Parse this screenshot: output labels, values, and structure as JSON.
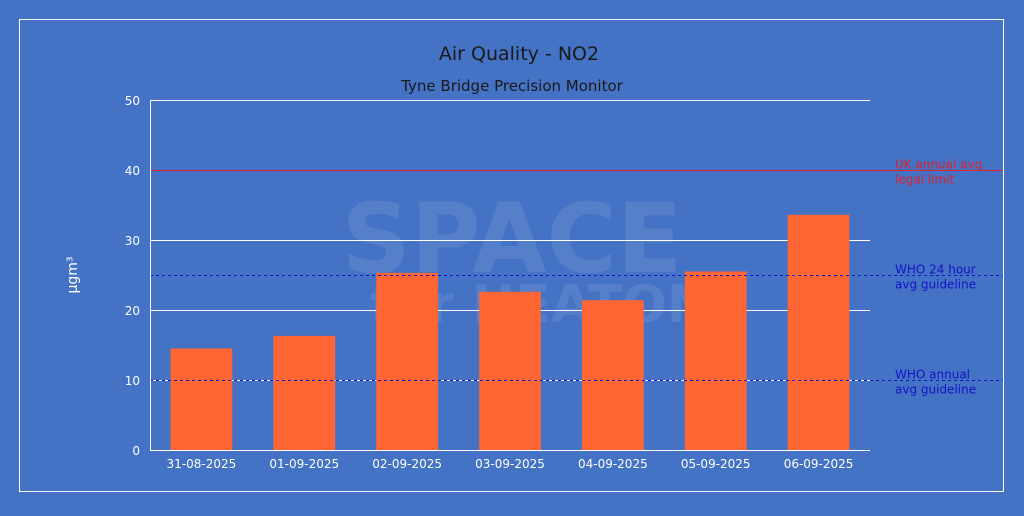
{
  "chart_data": {
    "type": "bar",
    "title": "Air Quality - NO2",
    "subtitle": "Tyne Bridge Precision Monitor",
    "xlabel": "",
    "ylabel": "μgm³",
    "ylim": [
      0,
      50
    ],
    "yticks": [
      0,
      10,
      20,
      30,
      40,
      50
    ],
    "grid": true,
    "categories": [
      "31-08-2025",
      "01-09-2025",
      "02-09-2025",
      "03-09-2025",
      "04-09-2025",
      "05-09-2025",
      "06-09-2025"
    ],
    "values": [
      14.5,
      16.3,
      25.3,
      22.6,
      21.4,
      25.5,
      33.6
    ],
    "reference_lines": [
      {
        "label_lines": [
          "UK annual avg",
          "legal limit"
        ],
        "value": 40,
        "style": "solid",
        "color": "#e0202a"
      },
      {
        "label_lines": [
          "WHO 24 hour",
          "avg guideline"
        ],
        "value": 25,
        "style": "dashed",
        "color": "#1414c8"
      },
      {
        "label_lines": [
          "WHO annual",
          "avg guideline"
        ],
        "value": 10,
        "style": "dashed",
        "color": "#1414c8"
      }
    ],
    "watermark": [
      "SPACE",
      "for HEATON"
    ]
  },
  "colors": {
    "background": "#4472c4",
    "bar": "#ff6633",
    "text": "#ffffff",
    "title_text": "#1a1a1a",
    "gridline": "#ffffff"
  }
}
